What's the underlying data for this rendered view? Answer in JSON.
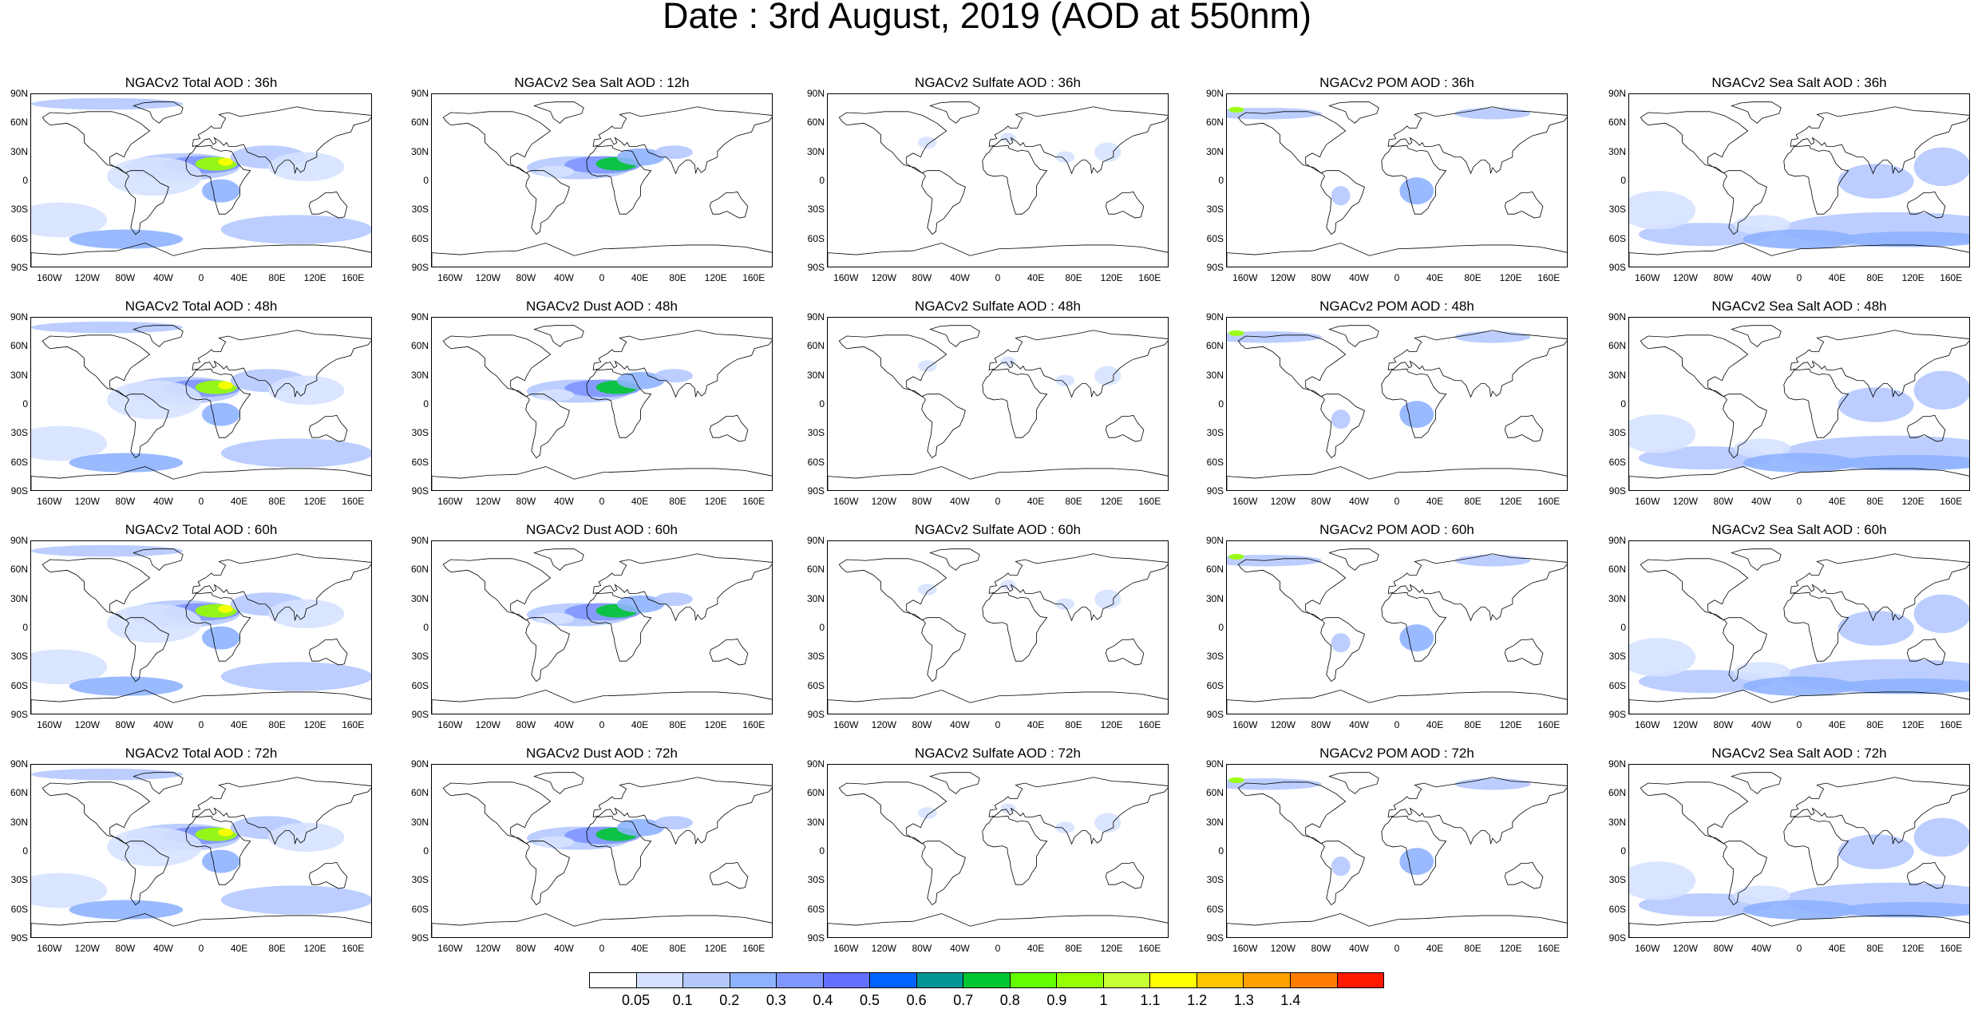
{
  "title": "Date : 3rd August, 2019 (AOD at 550nm)",
  "lat_labels": [
    "90N",
    "60N",
    "30N",
    "0",
    "30S",
    "60S",
    "90S"
  ],
  "lon_labels": [
    "160W",
    "120W",
    "80W",
    "40W",
    "0",
    "40E",
    "80E",
    "120E",
    "160E"
  ],
  "panels": [
    [
      "NGACv2 Total AOD : 36h",
      "NGACv2 Sea Salt  AOD : 12h",
      "NGACv2 Sulfate AOD : 36h",
      "NGACv2 POM AOD : 36h",
      "NGACv2 Sea Salt AOD : 36h"
    ],
    [
      "NGACv2 Total AOD : 48h",
      "NGACv2 Dust AOD : 48h",
      "NGACv2 Sulfate AOD : 48h",
      "NGACv2 POM AOD : 48h",
      "NGACv2 Sea Salt AOD : 48h"
    ],
    [
      "NGACv2 Total AOD : 60h",
      "NGACv2 Dust AOD : 60h",
      "NGACv2 Sulfate AOD : 60h",
      "NGACv2 POM AOD : 60h",
      "NGACv2 Sea Salt AOD : 60h"
    ],
    [
      "NGACv2 Total AOD : 72h",
      "NGACv2 Dust AOD : 72h",
      "NGACv2 Sulfate AOD : 72h",
      "NGACv2 POM AOD : 72h",
      "NGACv2 Sea Salt  AOD : 72h"
    ]
  ],
  "colorbar": {
    "labels": [
      "0.05",
      "0.1",
      "0.2",
      "0.3",
      "0.4",
      "0.5",
      "0.6",
      "0.7",
      "0.8",
      "0.9",
      "1",
      "1.1",
      "1.2",
      "1.3",
      "1.4"
    ],
    "colors": [
      "#ffffff",
      "#d6e2ff",
      "#b5c9ff",
      "#8eb2ff",
      "#7f96ff",
      "#6370ff",
      "#0063ff",
      "#009696",
      "#00c633",
      "#63ff00",
      "#96ff00",
      "#c6ff33",
      "#ffff00",
      "#ffc600",
      "#ffa000",
      "#ff7c00",
      "#ff1900"
    ]
  }
}
